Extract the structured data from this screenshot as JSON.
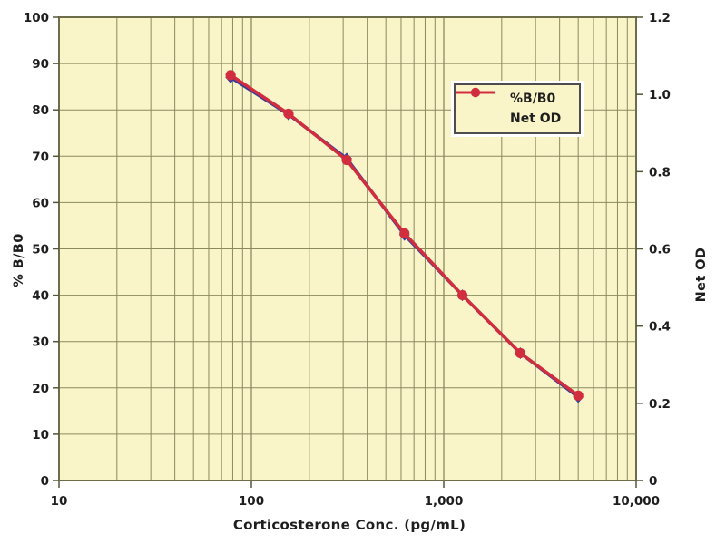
{
  "figure": {
    "background": "#ffffff",
    "plot_background": "#f9f5c8",
    "grid_color": "#8a8a5e",
    "border_color": "#6d6d49",
    "tick_color": "#55553a",
    "text_color": "#1e1e1e",
    "legend_border_color": "#4d4d4d"
  },
  "chart_data": {
    "type": "line",
    "title": "",
    "x": [
      78,
      156,
      313,
      625,
      1250,
      2500,
      5000
    ],
    "series": [
      {
        "name": "%B/B0",
        "axis": "left",
        "color": "#3c3c99",
        "marker": "diamond",
        "values": [
          87,
          79,
          69.5,
          53,
          40,
          27.5,
          18
        ]
      },
      {
        "name": "Net OD",
        "axis": "right",
        "color": "#d12d3f",
        "marker": "circle",
        "values": [
          1.05,
          0.95,
          0.83,
          0.64,
          0.48,
          0.33,
          0.22
        ]
      }
    ],
    "x_axis": {
      "label": "Corticosterone Conc. (pg/mL)",
      "scale": "log",
      "min": 10,
      "max": 10000,
      "ticks": [
        [
          10,
          "10"
        ],
        [
          100,
          "100"
        ],
        [
          1000,
          "1,000"
        ],
        [
          10000,
          "10,000"
        ]
      ]
    },
    "y_left_axis": {
      "label": "% B/B0",
      "min": 0,
      "max": 100,
      "ticks": [
        [
          0,
          "0"
        ],
        [
          10,
          "10"
        ],
        [
          20,
          "20"
        ],
        [
          30,
          "30"
        ],
        [
          40,
          "40"
        ],
        [
          50,
          "50"
        ],
        [
          60,
          "60"
        ],
        [
          70,
          "70"
        ],
        [
          80,
          "80"
        ],
        [
          90,
          "90"
        ],
        [
          100,
          "100"
        ]
      ]
    },
    "y_right_axis": {
      "label": "Net OD",
      "min": 0,
      "max": 1.2,
      "ticks": [
        [
          0,
          "0"
        ],
        [
          0.2,
          "0.2"
        ],
        [
          0.4,
          "0.4"
        ],
        [
          0.6,
          "0.6"
        ],
        [
          0.8,
          "0.8"
        ],
        [
          1.0,
          "1.0"
        ],
        [
          1.2,
          "1.2"
        ]
      ]
    },
    "legend": {
      "position": "upper-right-inside",
      "entries": [
        "%B/B0",
        "Net OD"
      ]
    },
    "grid": "x-log-minor-and-decades, y-major-every-10"
  }
}
